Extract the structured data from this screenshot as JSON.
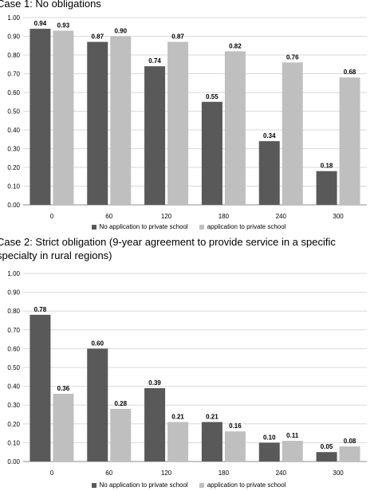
{
  "chart_data": [
    {
      "type": "bar",
      "title": "Case 1: No obligations",
      "categories": [
        "0",
        "60",
        "120",
        "180",
        "240",
        "300"
      ],
      "ylim": [
        0,
        1.0
      ],
      "yticks": [
        "0.00",
        "0.10",
        "0.20",
        "0.30",
        "0.40",
        "0.50",
        "0.60",
        "0.70",
        "0.80",
        "0.90",
        "1.00"
      ],
      "grid": true,
      "legend": "bottom",
      "series": [
        {
          "name": "No application to private school",
          "color": "#595959",
          "values": [
            0.94,
            0.87,
            0.74,
            0.55,
            0.34,
            0.18
          ],
          "labels": [
            "0.94",
            "0.87",
            "0.74",
            "0.55",
            "0.34",
            "0.18"
          ]
        },
        {
          "name": "application to private school",
          "color": "#bfbfbf",
          "values": [
            0.93,
            0.9,
            0.87,
            0.82,
            0.76,
            0.68
          ],
          "labels": [
            "0.93",
            "0.90",
            "0.87",
            "0.82",
            "0.76",
            "0.68"
          ]
        }
      ]
    },
    {
      "type": "bar",
      "title": "Case 2: Strict obligation (9-year agreement to provide service in a specific specialty in rural regions)",
      "categories": [
        "0",
        "60",
        "120",
        "180",
        "240",
        "300"
      ],
      "ylim": [
        0,
        1.0
      ],
      "yticks": [
        "0.00",
        "0.10",
        "0.20",
        "0.30",
        "0.40",
        "0.50",
        "0.60",
        "0.70",
        "0.80",
        "0.90",
        "1.00"
      ],
      "grid": true,
      "legend": "bottom",
      "series": [
        {
          "name": "No application to private school",
          "color": "#595959",
          "values": [
            0.78,
            0.6,
            0.39,
            0.21,
            0.1,
            0.05
          ],
          "labels": [
            "0.78",
            "0.60",
            "0.39",
            "0.21",
            "0.10",
            "0.05"
          ]
        },
        {
          "name": "application to private school",
          "color": "#bfbfbf",
          "values": [
            0.36,
            0.28,
            0.21,
            0.16,
            0.11,
            0.08
          ],
          "labels": [
            "0.36",
            "0.28",
            "0.21",
            "0.16",
            "0.11",
            "0.08"
          ]
        }
      ]
    }
  ]
}
